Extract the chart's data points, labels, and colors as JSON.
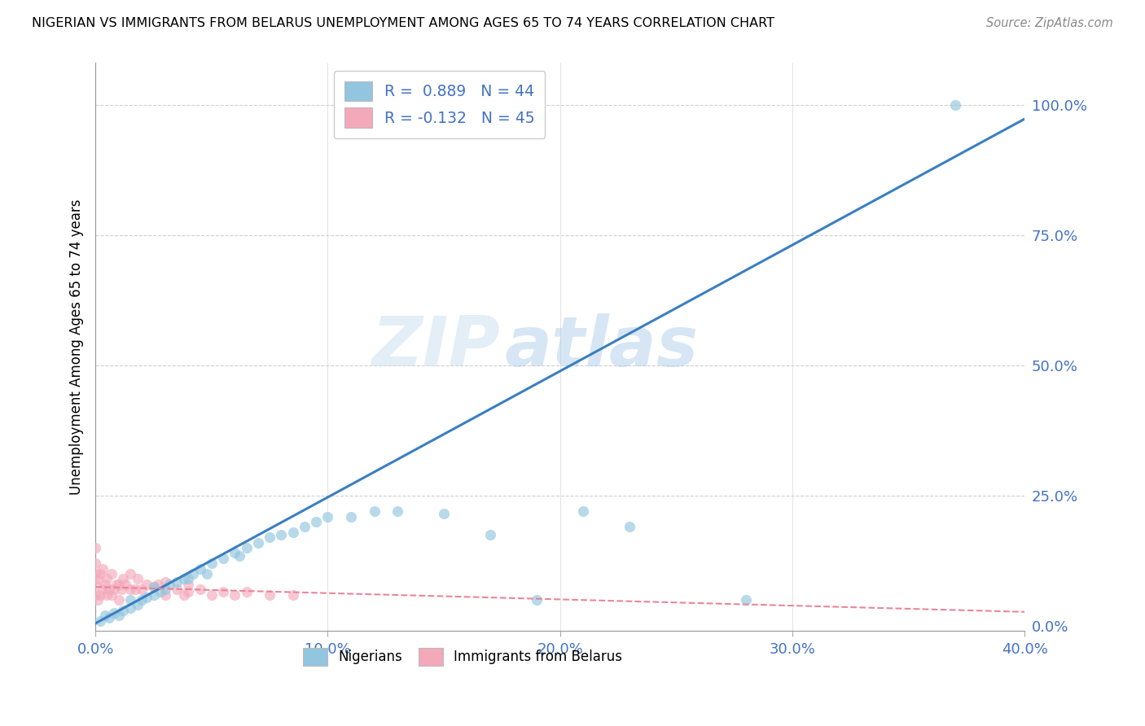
{
  "title": "NIGERIAN VS IMMIGRANTS FROM BELARUS UNEMPLOYMENT AMONG AGES 65 TO 74 YEARS CORRELATION CHART",
  "source": "Source: ZipAtlas.com",
  "ylabel": "Unemployment Among Ages 65 to 74 years",
  "xlabel_ticks": [
    "0.0%",
    "10.0%",
    "20.0%",
    "30.0%",
    "40.0%"
  ],
  "ylabel_ticks_right": [
    "100.0%",
    "75.0%",
    "50.0%",
    "25.0%",
    "0.0%"
  ],
  "y_tick_vals": [
    1.0,
    0.75,
    0.5,
    0.25,
    0.0
  ],
  "x_min": 0.0,
  "x_max": 0.4,
  "y_min": -0.01,
  "y_max": 1.08,
  "legend1_label": "R =  0.889   N = 44",
  "legend2_label": "R = -0.132   N = 45",
  "legend_nigerians": "Nigerians",
  "legend_belarus": "Immigrants from Belarus",
  "blue_color": "#92c5de",
  "pink_color": "#f4a9bb",
  "blue_line_color": "#3a7fc1",
  "pink_line_color": "#e8869a",
  "watermark_zip": "ZIP",
  "watermark_atlas": "atlas",
  "blue_line_slope": 2.42,
  "blue_line_intercept": 0.005,
  "pink_line_slope": -0.12,
  "pink_line_intercept": 0.075,
  "nigerians_x": [
    0.002,
    0.004,
    0.006,
    0.008,
    0.01,
    0.012,
    0.015,
    0.015,
    0.018,
    0.02,
    0.022,
    0.025,
    0.025,
    0.028,
    0.03,
    0.032,
    0.035,
    0.038,
    0.04,
    0.042,
    0.045,
    0.048,
    0.05,
    0.055,
    0.06,
    0.062,
    0.065,
    0.07,
    0.075,
    0.08,
    0.085,
    0.09,
    0.095,
    0.1,
    0.11,
    0.12,
    0.13,
    0.15,
    0.17,
    0.19,
    0.21,
    0.23,
    0.28,
    0.37
  ],
  "nigerians_y": [
    0.01,
    0.02,
    0.015,
    0.025,
    0.02,
    0.03,
    0.035,
    0.05,
    0.04,
    0.05,
    0.055,
    0.06,
    0.075,
    0.065,
    0.07,
    0.08,
    0.085,
    0.09,
    0.09,
    0.1,
    0.11,
    0.1,
    0.12,
    0.13,
    0.14,
    0.135,
    0.15,
    0.16,
    0.17,
    0.175,
    0.18,
    0.19,
    0.2,
    0.21,
    0.21,
    0.22,
    0.22,
    0.215,
    0.175,
    0.05,
    0.22,
    0.19,
    0.05,
    1.0
  ],
  "belarus_x": [
    0.0,
    0.0,
    0.0,
    0.0,
    0.0,
    0.001,
    0.001,
    0.002,
    0.002,
    0.003,
    0.003,
    0.004,
    0.005,
    0.005,
    0.006,
    0.007,
    0.007,
    0.008,
    0.009,
    0.01,
    0.01,
    0.011,
    0.012,
    0.013,
    0.015,
    0.015,
    0.017,
    0.018,
    0.02,
    0.022,
    0.025,
    0.027,
    0.03,
    0.03,
    0.035,
    0.038,
    0.04,
    0.04,
    0.045,
    0.05,
    0.055,
    0.06,
    0.065,
    0.075,
    0.085
  ],
  "belarus_y": [
    0.06,
    0.08,
    0.1,
    0.12,
    0.15,
    0.05,
    0.09,
    0.06,
    0.1,
    0.07,
    0.11,
    0.08,
    0.06,
    0.09,
    0.07,
    0.06,
    0.1,
    0.07,
    0.08,
    0.05,
    0.08,
    0.07,
    0.09,
    0.08,
    0.07,
    0.1,
    0.07,
    0.09,
    0.07,
    0.08,
    0.075,
    0.08,
    0.06,
    0.085,
    0.07,
    0.06,
    0.065,
    0.08,
    0.07,
    0.06,
    0.065,
    0.06,
    0.065,
    0.06,
    0.06
  ]
}
